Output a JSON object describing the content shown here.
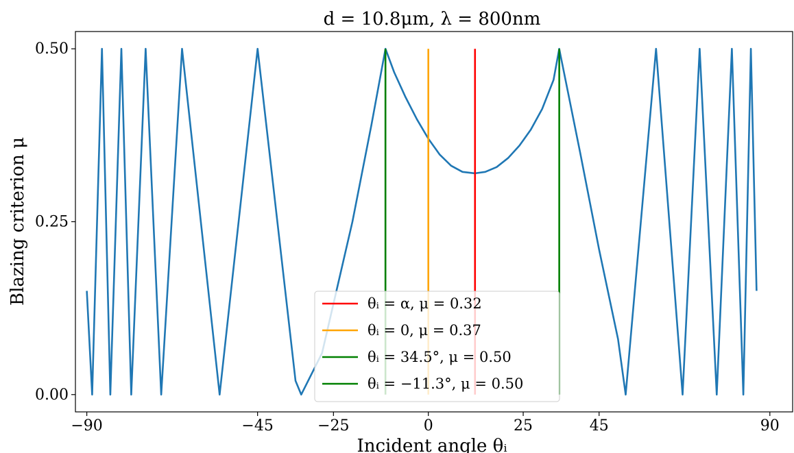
{
  "chart_data": {
    "type": "line",
    "title": "d = 10.8μm, λ = 800nm",
    "xlabel": "Incident angle θᵢ",
    "ylabel": "Blazing criterion μ",
    "xlim": [
      -93,
      96
    ],
    "ylim": [
      -0.025,
      0.525
    ],
    "xticks": [
      -90,
      -45,
      -25,
      0,
      25,
      45,
      90
    ],
    "xtick_labels": [
      "−90",
      "−45",
      "−25",
      "0",
      "25",
      "45",
      "90"
    ],
    "yticks": [
      0.0,
      0.25,
      0.5
    ],
    "ytick_labels": [
      "0.00",
      "0.25",
      "0.50"
    ],
    "grid": false,
    "legend_position": "bottom-center",
    "series": [
      {
        "color": "#1f77b4",
        "points": [
          [
            -90,
            0.15
          ],
          [
            -88.6,
            0.0
          ],
          [
            -86.0,
            0.5
          ],
          [
            -83.8,
            0.0
          ],
          [
            -80.9,
            0.5
          ],
          [
            -78.3,
            0.0
          ],
          [
            -74.5,
            0.5
          ],
          [
            -70.4,
            0.0
          ],
          [
            -64.9,
            0.5
          ],
          [
            -55.0,
            0.0
          ],
          [
            -45.0,
            0.5
          ],
          [
            -35.0,
            0.02
          ],
          [
            -33.5,
            0.0
          ],
          [
            -28.0,
            0.06
          ],
          [
            -20.0,
            0.25
          ],
          [
            -15.0,
            0.39
          ],
          [
            -11.3,
            0.5
          ],
          [
            -9.0,
            0.466
          ],
          [
            -6.0,
            0.43
          ],
          [
            -3.0,
            0.398
          ],
          [
            0.0,
            0.37
          ],
          [
            3.0,
            0.347
          ],
          [
            6.0,
            0.331
          ],
          [
            9.0,
            0.322
          ],
          [
            12.3,
            0.32
          ],
          [
            15.0,
            0.322
          ],
          [
            18.0,
            0.329
          ],
          [
            21.0,
            0.342
          ],
          [
            24.0,
            0.36
          ],
          [
            27.0,
            0.383
          ],
          [
            30.0,
            0.413
          ],
          [
            33.0,
            0.455
          ],
          [
            34.5,
            0.5
          ],
          [
            40.0,
            0.35
          ],
          [
            45.0,
            0.21
          ],
          [
            50.0,
            0.08
          ],
          [
            52.0,
            0.0
          ],
          [
            60.0,
            0.5
          ],
          [
            67.0,
            0.0
          ],
          [
            71.5,
            0.5
          ],
          [
            76.0,
            0.0
          ],
          [
            80.0,
            0.5
          ],
          [
            83.0,
            0.0
          ],
          [
            85.0,
            0.5
          ],
          [
            86.5,
            0.15
          ]
        ]
      }
    ],
    "vlines": [
      {
        "label": "θᵢ = α, μ = 0.32",
        "color": "#ff0000",
        "x": 12.3,
        "y0": 0.0,
        "y1": 0.5
      },
      {
        "label": "θᵢ = 0, μ = 0.37",
        "color": "#ffa500",
        "x": 0.0,
        "y0": 0.0,
        "y1": 0.5
      },
      {
        "label": "θᵢ = 34.5°, μ = 0.50",
        "color": "#008000",
        "x": 34.5,
        "y0": 0.0,
        "y1": 0.5
      },
      {
        "label": "θᵢ = −11.3°, μ = 0.50",
        "color": "#008000",
        "x": -11.3,
        "y0": 0.0,
        "y1": 0.5
      }
    ]
  }
}
